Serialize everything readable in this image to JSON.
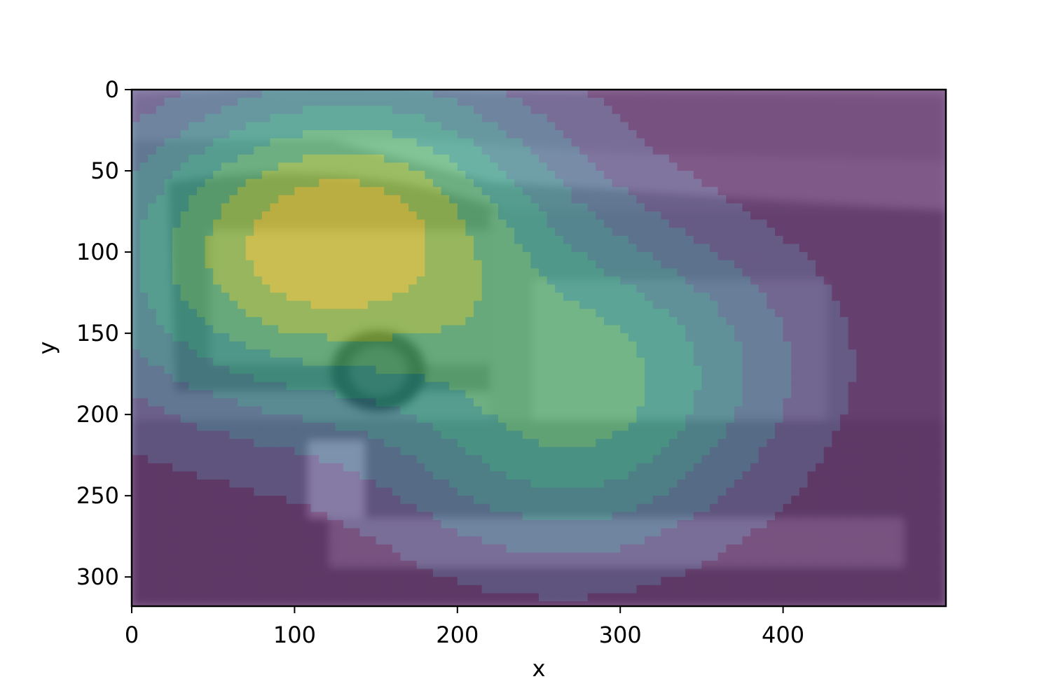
{
  "chart_data": {
    "type": "heatmap",
    "title": "",
    "xlabel": "x",
    "ylabel": "y",
    "xlim": [
      0,
      500
    ],
    "ylim": [
      318,
      0
    ],
    "y_axis_inverted": true,
    "xticks": [
      0,
      100,
      200,
      300,
      400
    ],
    "yticks": [
      0,
      50,
      100,
      150,
      200,
      250,
      300
    ],
    "grid": false,
    "legend": "none",
    "colormap": "viridis",
    "overlay_alpha": "semi-transparent",
    "background": "grayscale photo of a street scene with a vintage car",
    "contour_levels": 8,
    "hotspots": [
      {
        "x": 100,
        "y": 115,
        "intensity": 1.0
      },
      {
        "x": 145,
        "y": 65,
        "intensity": 0.72
      },
      {
        "x": 295,
        "y": 165,
        "intensity": 0.7
      },
      {
        "x": 260,
        "y": 230,
        "intensity": 0.45
      }
    ],
    "colors": {
      "level_0": "#440154",
      "level_1": "#46327e",
      "level_2": "#365c8d",
      "level_3": "#277f8e",
      "level_4": "#1fa187",
      "level_5": "#4ac16d",
      "level_6": "#a0da39",
      "level_7": "#fde725"
    }
  }
}
